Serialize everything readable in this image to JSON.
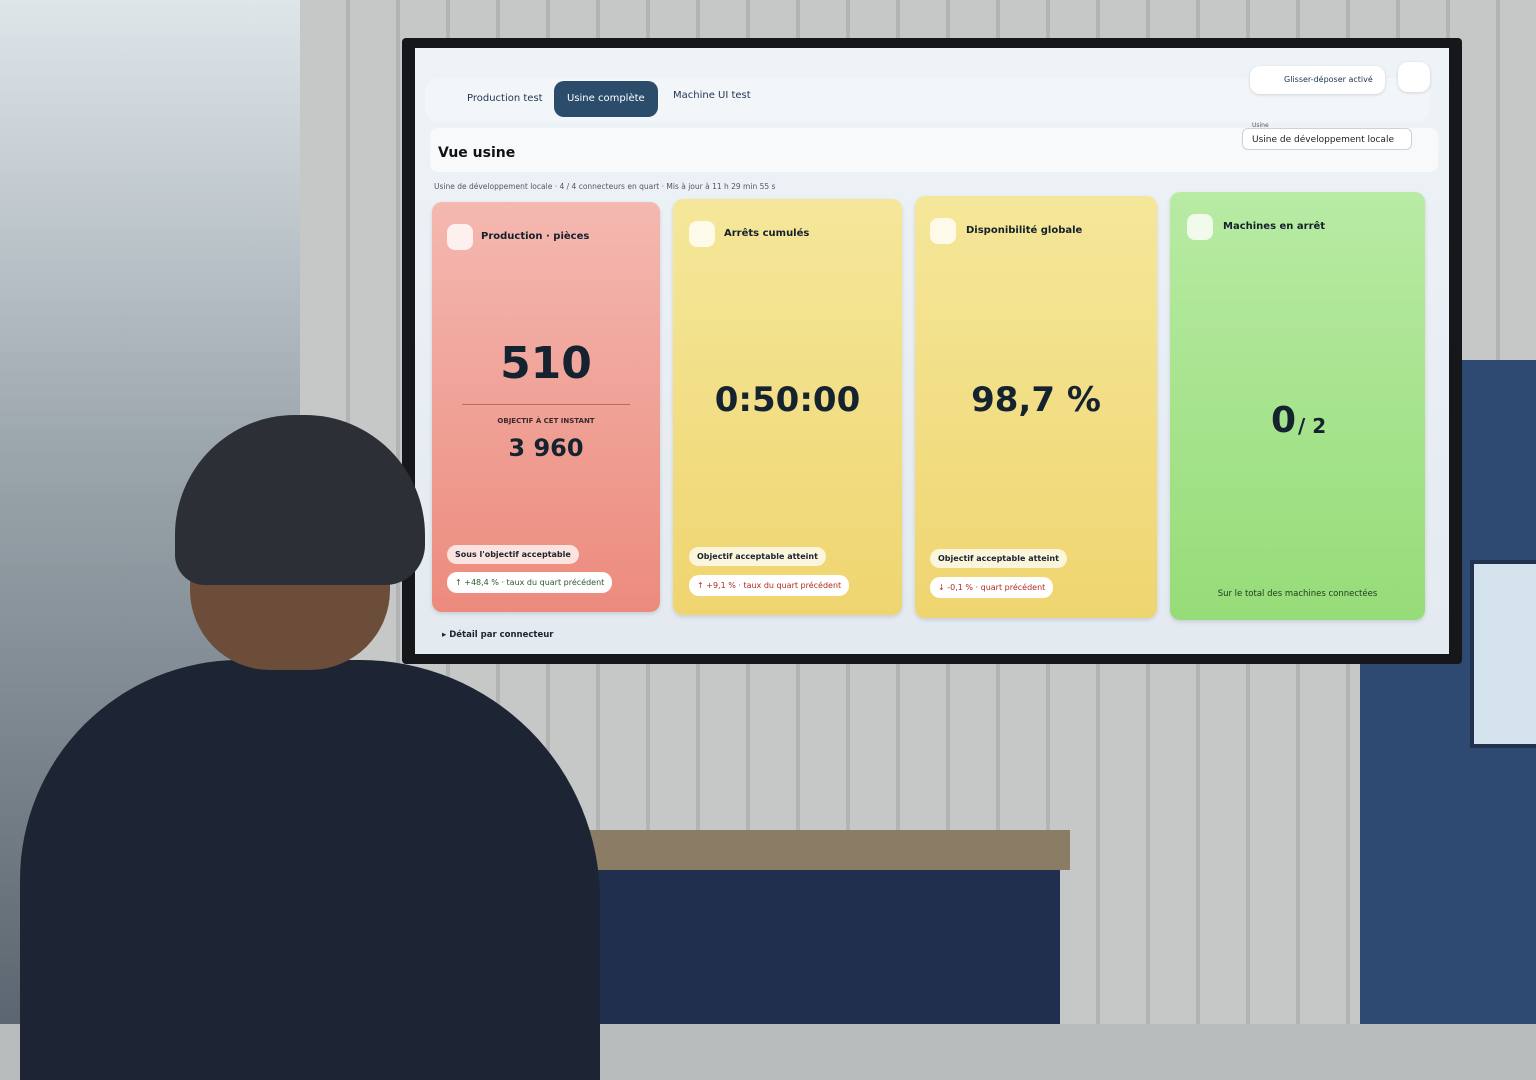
{
  "tabs": [
    "Production test",
    "Usine complète",
    "Machine UI test"
  ],
  "drag_button": "Glisser-déposer activé",
  "select": {
    "label": "Usine",
    "value": "Usine de développement locale"
  },
  "header": {
    "title": "Vue usine",
    "subtitle": "Usine de développement locale · 4 / 4 connecteurs en quart · Mis à jour à 11 h 29 min 55 s"
  },
  "cards": [
    {
      "title": "Production · pièces",
      "value": "510",
      "target_label": "OBJECTIF À CET INSTANT",
      "target_value": "3 960",
      "badge": "Sous l'objectif acceptable",
      "trend": "↑ +48,4 % · taux du quart précédent"
    },
    {
      "title": "Arrêts cumulés",
      "value": "0:50:00",
      "badge": "Objectif acceptable atteint",
      "trend": "↑ +9,1 % · taux du quart précédent"
    },
    {
      "title": "Disponibilité globale",
      "value": "98,7 %",
      "badge": "Objectif acceptable atteint",
      "trend": "↓ -0,1 % · quart précédent"
    },
    {
      "title": "Machines en arrêt",
      "value": "0",
      "value_total": "/ 2",
      "footer": "Sur le total des machines connectées"
    }
  ],
  "details": "Détail par connecteur"
}
